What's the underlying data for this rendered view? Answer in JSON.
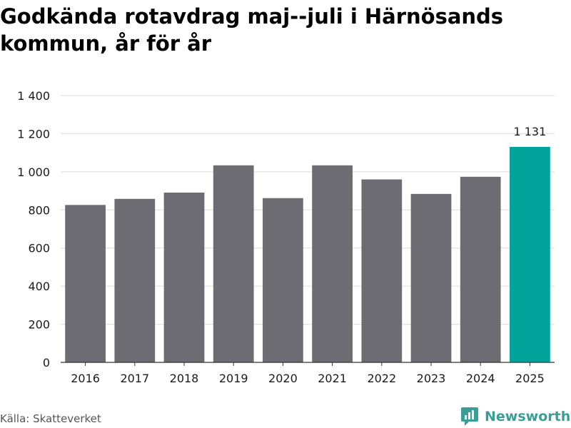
{
  "title": "Godkända rotavdrag maj--juli i Härnösands kommun, år för år",
  "source": "Källa: Skatteverket",
  "brand": {
    "name": "Newsworthy",
    "icon": "newsworthy-logo-icon",
    "color": "#3a9e98"
  },
  "colors": {
    "bar": "#6d6c72",
    "highlight": "#00a29a",
    "grid": "#dcdcdc",
    "axis": "#333333"
  },
  "chart_data": {
    "type": "bar",
    "categories": [
      "2016",
      "2017",
      "2018",
      "2019",
      "2020",
      "2021",
      "2022",
      "2023",
      "2024",
      "2025"
    ],
    "values": [
      826,
      858,
      891,
      1034,
      862,
      1034,
      960,
      884,
      974,
      1131
    ],
    "highlight_index": 9,
    "data_labels": [
      {
        "index": 9,
        "text": "1 131"
      }
    ],
    "y_ticks": [
      0,
      200,
      400,
      600,
      800,
      1000,
      1200,
      1400
    ],
    "y_tick_labels": [
      "0",
      "200",
      "400",
      "600",
      "800",
      "1 000",
      "1 200",
      "1 400"
    ],
    "ylim": [
      0,
      1400
    ],
    "grid": true,
    "xlabel": "",
    "ylabel": ""
  }
}
